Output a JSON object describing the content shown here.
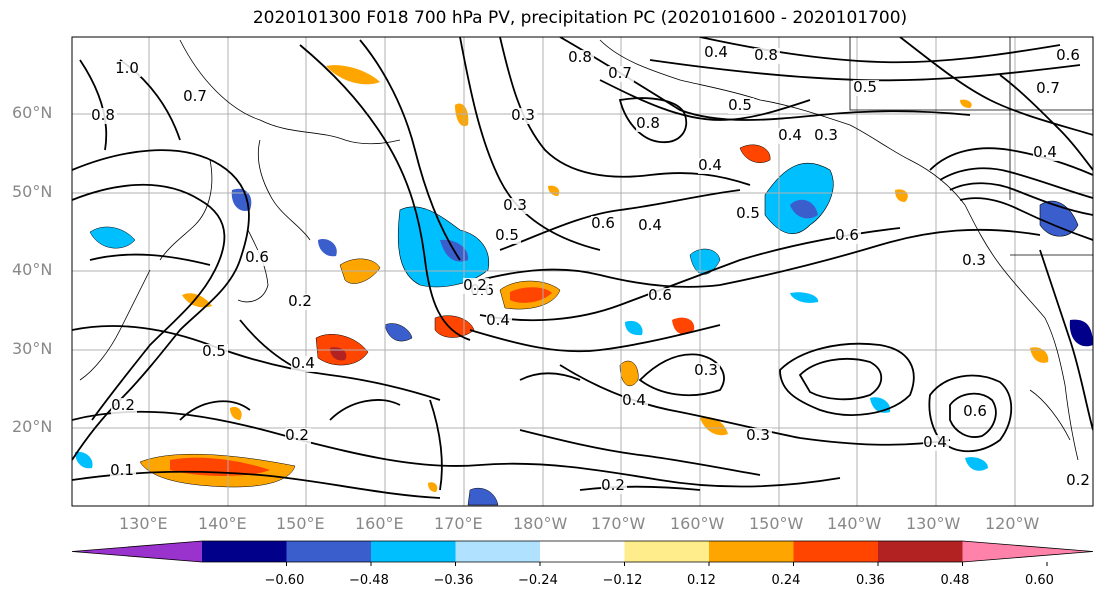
{
  "title": "2020101300 F018 700 hPa PV, precipitation PC (2020101600 - 2020101700)",
  "lat_labels": [
    "60°N",
    "50°N",
    "40°N",
    "30°N",
    "20°N"
  ],
  "lon_labels": [
    "130°E",
    "140°E",
    "150°E",
    "160°E",
    "170°E",
    "180°W",
    "170°W",
    "160°W",
    "150°W",
    "140°W",
    "130°W",
    "120°W"
  ],
  "colorbar": {
    "ticks": [
      "−0.60",
      "−0.48",
      "−0.36",
      "−0.24",
      "−0.12",
      "0.12",
      "0.24",
      "0.36",
      "0.48",
      "0.60"
    ],
    "colors": [
      "#9a32cd",
      "#00008b",
      "#3a5fcd",
      "#00bfff",
      "#b0e2ff",
      "#ffffff",
      "#ffec8b",
      "#ffa500",
      "#ff4500",
      "#b22222",
      "#ff82ab"
    ]
  },
  "contour_labels": [
    "0.8",
    "0.7",
    "0.8",
    "0.6",
    "0.5",
    "0.6",
    "0.4",
    "0.3",
    "0.8",
    "0.4",
    "0.7",
    "0.5",
    "0.3",
    "0.4",
    "0.5",
    "0.6",
    "0.2",
    "0.4",
    "0.4",
    "0.6",
    "0.5",
    "0.4",
    "0.2",
    "0.2",
    "0.4",
    "0.3",
    "0.6",
    "0.4",
    "0.3",
    "0.2",
    "0.3",
    "0.4",
    "0.6",
    "0.2",
    "0.5",
    "0.6",
    "0.2",
    "0.3",
    "0.1",
    "1.0",
    "0.7",
    "0.8"
  ]
}
